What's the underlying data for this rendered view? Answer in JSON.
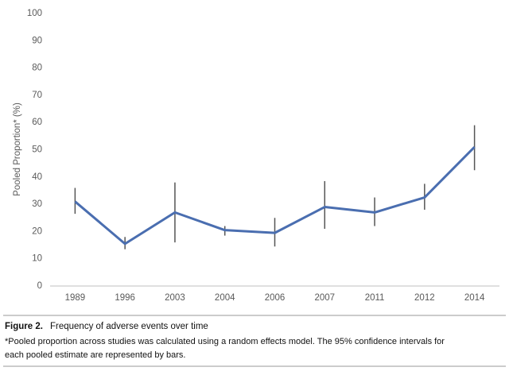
{
  "chart_data": {
    "type": "line",
    "y_label": "Pooled Proportion* (%)",
    "categories": [
      "1989",
      "1996",
      "2003",
      "2004",
      "2006",
      "2007",
      "2011",
      "2012",
      "2014"
    ],
    "series": [
      {
        "color": "#4a6eb0",
        "values": [
          31,
          15.5,
          27,
          20.5,
          19.5,
          29,
          27,
          32.5,
          51
        ],
        "ci_lower": [
          26.5,
          13.5,
          16,
          18.5,
          14.5,
          21,
          22,
          28,
          42.5
        ],
        "ci_upper": [
          36,
          18,
          38,
          22,
          25,
          38.5,
          32.5,
          37.5,
          59
        ]
      }
    ],
    "error_color": "#555555",
    "ylim": [
      0,
      100
    ],
    "yticks": [
      0,
      10,
      20,
      30,
      40,
      50,
      60,
      70,
      80,
      90,
      100
    ]
  },
  "caption": {
    "label": "Figure 2.",
    "title": "Frequency of adverse events over time",
    "note_lines": [
      "*Pooled proportion across studies was calculated using a random effects model. The 95% confidence intervals for",
      "each pooled estimate are represented by bars."
    ]
  }
}
